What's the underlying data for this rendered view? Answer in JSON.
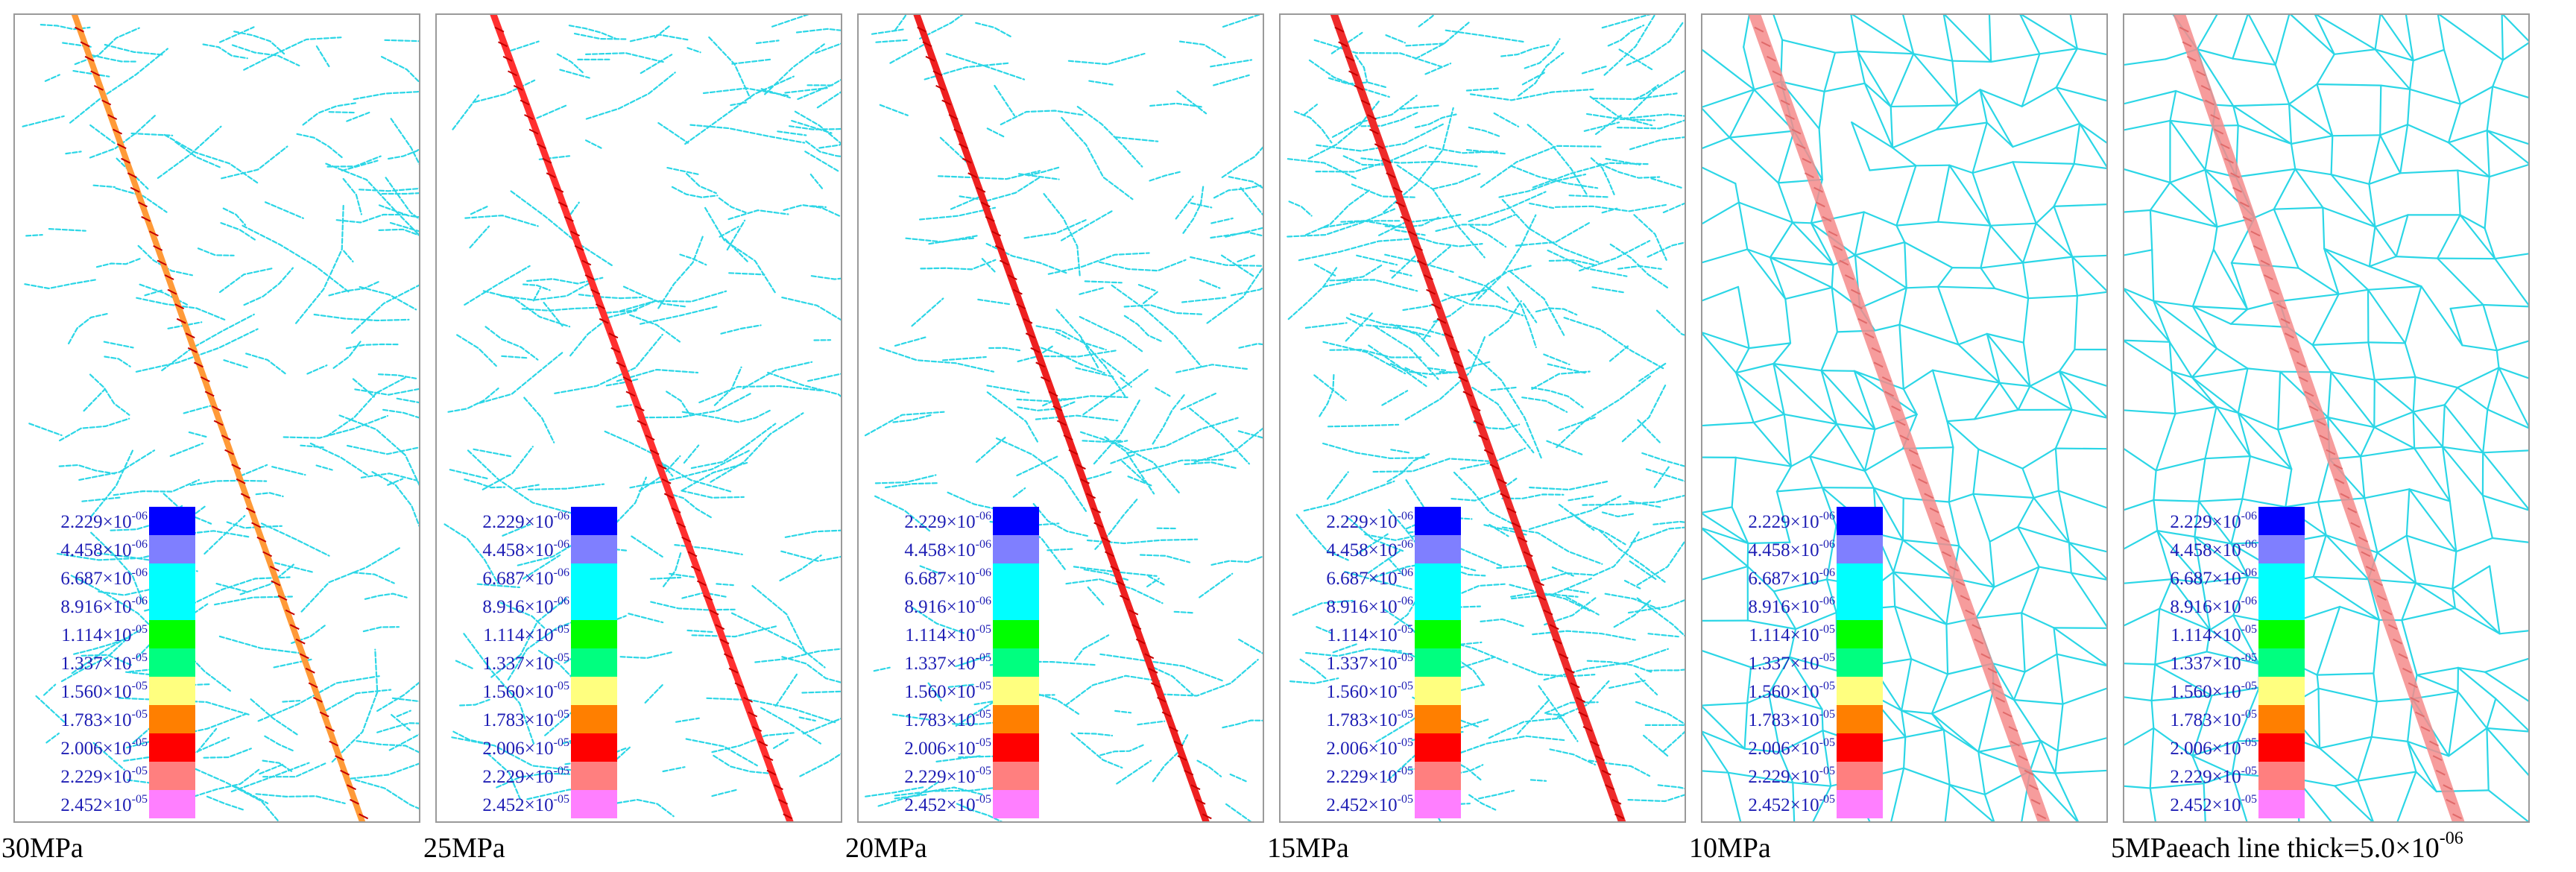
{
  "figure": {
    "panels": [
      {
        "pressure_label": "30MPa",
        "band_color": "#ff9a38",
        "network": "sparse"
      },
      {
        "pressure_label": "25MPa",
        "band_color": "#ff2f2f",
        "network": "sparse"
      },
      {
        "pressure_label": "20MPa",
        "band_color": "#ee2020",
        "network": "sparse"
      },
      {
        "pressure_label": "15MPa",
        "band_color": "#ee2a2a",
        "network": "medium"
      },
      {
        "pressure_label": "10MPa",
        "band_color": "#f58b8b",
        "network": "dense"
      },
      {
        "pressure_label": "5MPa",
        "band_color": "#f58b8b",
        "network": "dense"
      }
    ],
    "legend": {
      "items": [
        {
          "mantissa": "2.229",
          "exponent": "-06",
          "color": "#0000ff"
        },
        {
          "mantissa": "4.458",
          "exponent": "-06",
          "color": "#7f7fff"
        },
        {
          "mantissa": "6.687",
          "exponent": "-06",
          "color": "#00ffff"
        },
        {
          "mantissa": "8.916",
          "exponent": "-06",
          "color": "#00ffff"
        },
        {
          "mantissa": "1.114",
          "exponent": "-05",
          "color": "#00ff00"
        },
        {
          "mantissa": "1.337",
          "exponent": "-05",
          "color": "#00ff7f"
        },
        {
          "mantissa": "1.560",
          "exponent": "-05",
          "color": "#ffff7f"
        },
        {
          "mantissa": "1.783",
          "exponent": "-05",
          "color": "#ff7f00"
        },
        {
          "mantissa": "2.006",
          "exponent": "-05",
          "color": "#ff0000"
        },
        {
          "mantissa": "2.229",
          "exponent": "-05",
          "color": "#ff7f7f"
        },
        {
          "mantissa": "2.452",
          "exponent": "-05",
          "color": "#ff7fff"
        }
      ],
      "times_symbol": "×10"
    },
    "footnote": {
      "prefix": "each line thick=5.0×10",
      "exponent": "-06"
    },
    "colors": {
      "fracture_lines": "#2bd6e6",
      "frame": "#9a9a9a",
      "legend_text": "#1e1eb4"
    }
  }
}
